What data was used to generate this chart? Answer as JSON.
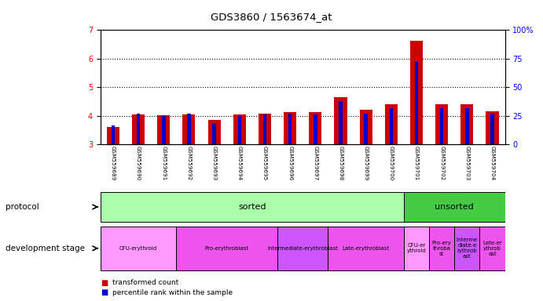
{
  "title": "GDS3860 / 1563674_at",
  "samples": [
    "GSM559689",
    "GSM559690",
    "GSM559691",
    "GSM559692",
    "GSM559693",
    "GSM559694",
    "GSM559695",
    "GSM559696",
    "GSM559697",
    "GSM559698",
    "GSM559699",
    "GSM559700",
    "GSM559701",
    "GSM559702",
    "GSM559703",
    "GSM559704"
  ],
  "transformed_count": [
    3.62,
    4.05,
    4.02,
    4.05,
    3.85,
    4.05,
    4.08,
    4.12,
    4.12,
    4.65,
    4.22,
    4.42,
    6.62,
    4.42,
    4.42,
    4.15
  ],
  "percentile_rank": [
    17,
    27,
    25,
    27,
    18,
    25,
    26,
    27,
    26,
    38,
    27,
    32,
    72,
    32,
    32,
    27
  ],
  "ylim_left": [
    3.0,
    7.0
  ],
  "ylim_right": [
    0,
    100
  ],
  "yticks_left": [
    3,
    4,
    5,
    6,
    7
  ],
  "yticks_right": [
    0,
    25,
    50,
    75,
    100
  ],
  "bar_color_red": "#cc0000",
  "bar_color_blue": "#0000cc",
  "protocol_sorted_indices": [
    0,
    1,
    2,
    3,
    4,
    5,
    6,
    7,
    8,
    9,
    10,
    11
  ],
  "protocol_unsorted_indices": [
    12,
    13,
    14,
    15
  ],
  "protocol_sorted_color": "#aaffaa",
  "protocol_unsorted_color": "#44cc44",
  "protocol_sorted_label": "sorted",
  "protocol_unsorted_label": "unsorted",
  "dev_groups": [
    {
      "label": "CFU-erythroid",
      "start": 0,
      "end": 2,
      "color": "#ff99ff"
    },
    {
      "label": "Pro-erythroblast",
      "start": 3,
      "end": 6,
      "color": "#ee55ee"
    },
    {
      "label": "Intermediate-erythroblast",
      "start": 7,
      "end": 8,
      "color": "#cc55ff"
    },
    {
      "label": "Late-erythroblast",
      "start": 9,
      "end": 11,
      "color": "#ee55ee"
    },
    {
      "label": "CFU-er\nythroid",
      "start": 12,
      "end": 12,
      "color": "#ff99ff"
    },
    {
      "label": "Pro-ery\nthroba\nst",
      "start": 13,
      "end": 13,
      "color": "#ee55ee"
    },
    {
      "label": "Interme\ndiate-e\nrythrob\nast",
      "start": 14,
      "end": 14,
      "color": "#cc55ff"
    },
    {
      "label": "Late-er\nythrob\nast",
      "start": 15,
      "end": 15,
      "color": "#ee55ee"
    }
  ],
  "legend_red_label": "transformed count",
  "legend_blue_label": "percentile rank within the sample",
  "protocol_label": "protocol",
  "dev_stage_label": "development stage",
  "dotted_yticks": [
    4.0,
    5.0,
    6.0
  ],
  "background_color": "#ffffff",
  "tick_label_bg": "#cccccc"
}
